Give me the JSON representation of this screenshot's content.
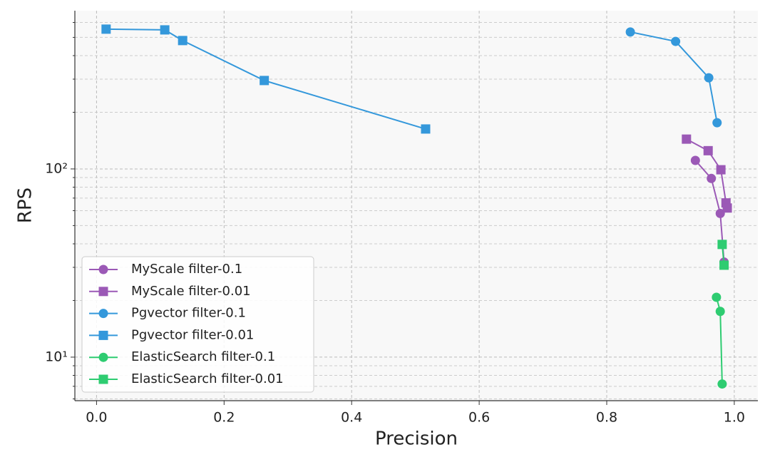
{
  "chart_data": {
    "type": "line",
    "xlabel": "Precision",
    "ylabel": "RPS",
    "xlim": [
      -0.034,
      1.037
    ],
    "ylim": [
      5.87,
      693
    ],
    "log_y": true,
    "grid": true,
    "legend": "lower left",
    "xticks": [
      {
        "value": 0,
        "label": "0.0"
      },
      0.2,
      0.4,
      0.6,
      0.8,
      {
        "value": 1,
        "label": "1.0"
      }
    ],
    "yticks": [
      {
        "value": 10,
        "label": "10¹"
      },
      {
        "value": 100,
        "label": "10²"
      }
    ],
    "yticks_minor": [
      6,
      7,
      8,
      9,
      20,
      30,
      40,
      50,
      60,
      70,
      80,
      90,
      200,
      300,
      400,
      500,
      600
    ],
    "series": [
      {
        "name": "MyScale filter-0.1",
        "color": "#9b59b6",
        "marker": "circle",
        "x": [
          0.939,
          0.964,
          0.978,
          0.984
        ],
        "values": [
          111,
          89,
          58,
          32
        ]
      },
      {
        "name": "MyScale filter-0.01",
        "color": "#9b59b6",
        "marker": "square",
        "x": [
          0.925,
          0.959,
          0.979,
          0.987,
          0.989
        ],
        "values": [
          144,
          125,
          99,
          66,
          62
        ]
      },
      {
        "name": "Pgvector filter-0.1",
        "color": "#3498db",
        "marker": "circle",
        "x": [
          0.837,
          0.908,
          0.96,
          0.973
        ],
        "values": [
          534,
          476,
          305,
          176
        ]
      },
      {
        "name": "Pgvector filter-0.01",
        "color": "#3498db",
        "marker": "square",
        "x": [
          0.015,
          0.107,
          0.135,
          0.263,
          0.516
        ],
        "values": [
          553,
          548,
          481,
          295,
          163
        ]
      },
      {
        "name": "ElasticSearch filter-0.1",
        "color": "#2ecc71",
        "marker": "circle",
        "x": [
          0.972,
          0.978,
          0.981
        ],
        "values": [
          20.8,
          17.5,
          7.2
        ]
      },
      {
        "name": "ElasticSearch filter-0.01",
        "color": "#2ecc71",
        "marker": "square",
        "x": [
          0.981,
          0.984
        ],
        "values": [
          39.7,
          30.8
        ]
      }
    ]
  }
}
